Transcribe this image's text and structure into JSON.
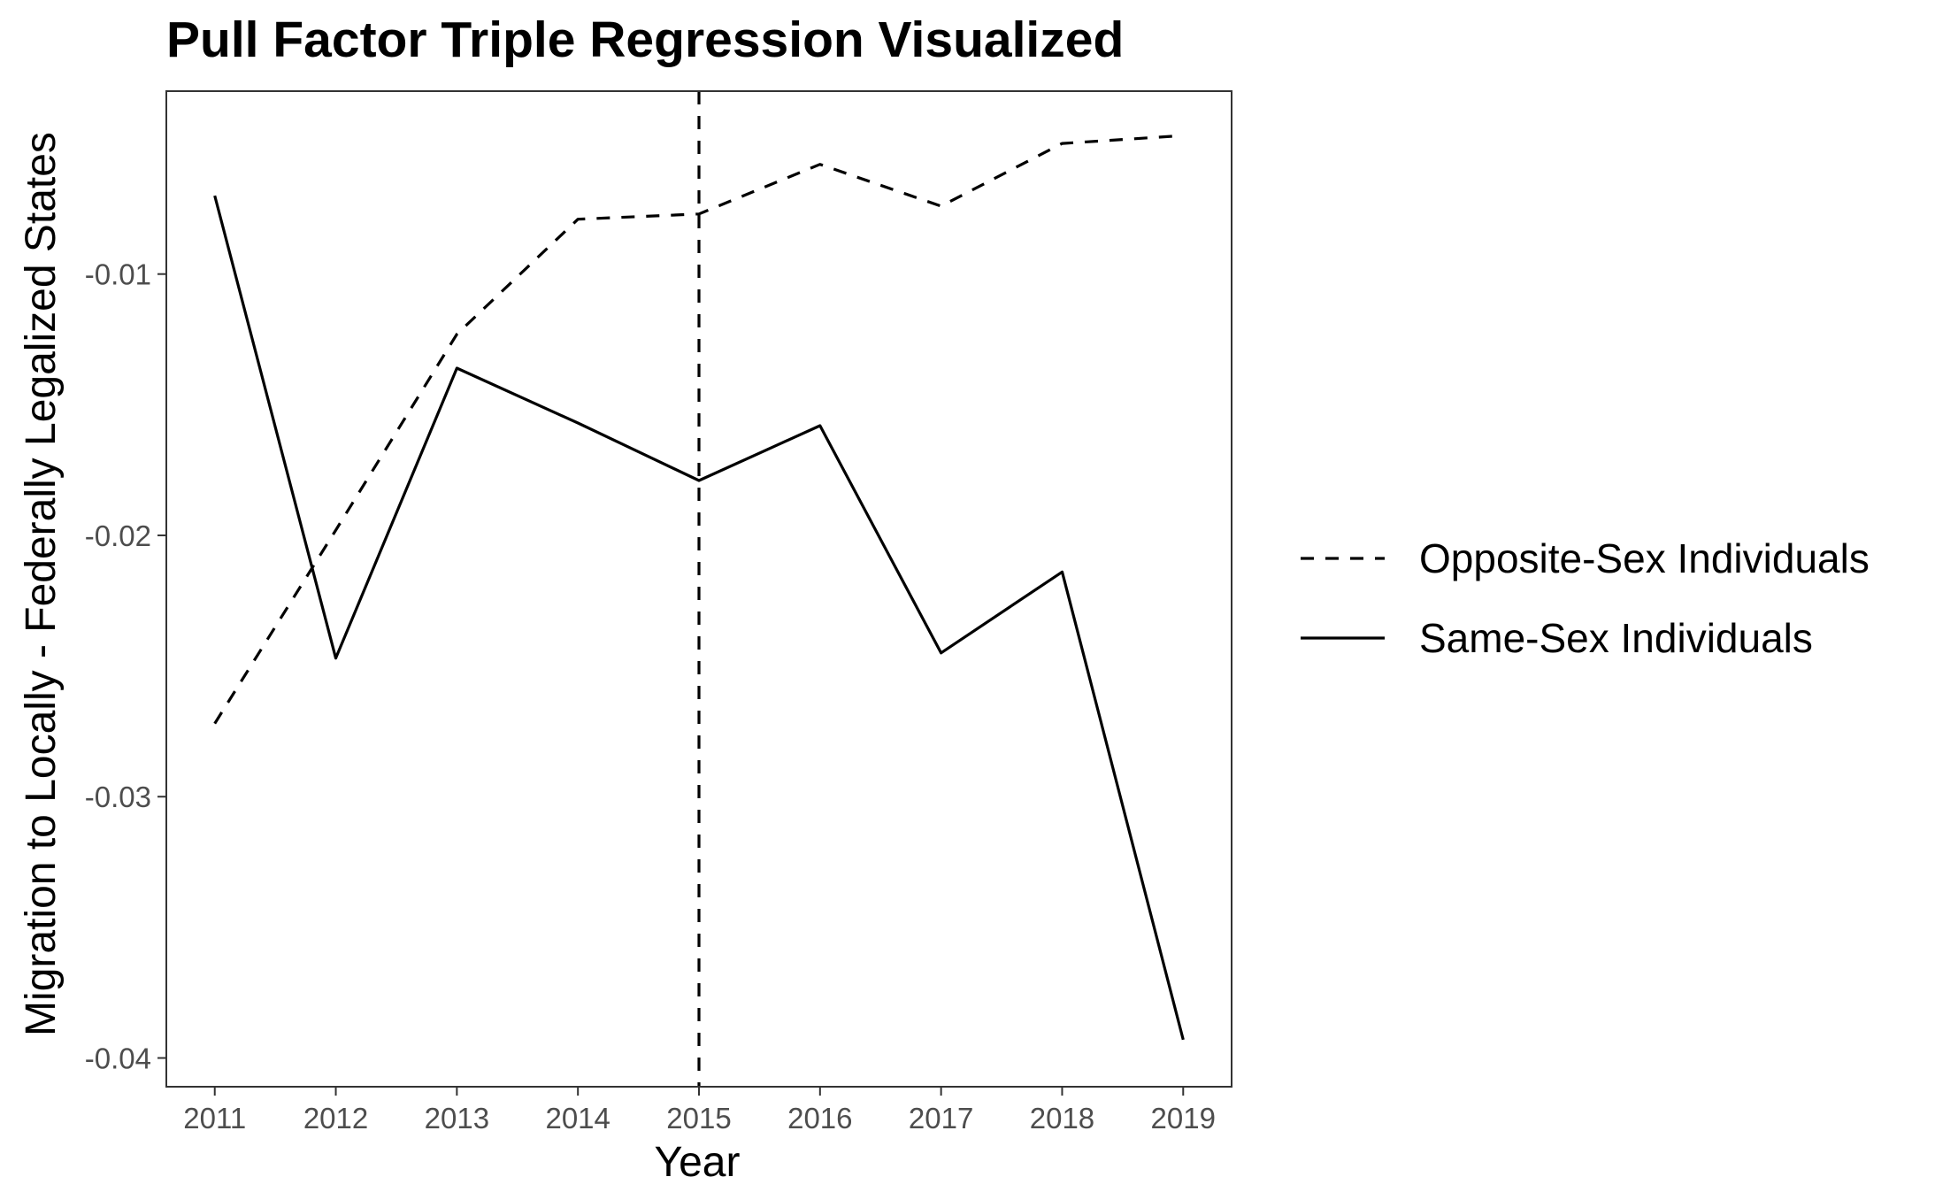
{
  "chart_data": {
    "type": "line",
    "title": "Pull Factor Triple Regression Visualized",
    "xlabel": "Year",
    "ylabel": "Migration to Locally - Federally Legalized States",
    "x": [
      2011,
      2012,
      2013,
      2014,
      2015,
      2016,
      2017,
      2018,
      2019
    ],
    "x_tick_labels": [
      "2011",
      "2012",
      "2013",
      "2014",
      "2015",
      "2016",
      "2017",
      "2018",
      "2019"
    ],
    "xlim": [
      2010.6,
      2019.4
    ],
    "y_ticks": [
      -0.01,
      -0.02,
      -0.03,
      -0.04
    ],
    "y_tick_labels": [
      "-0.01",
      "-0.02",
      "-0.03",
      "-0.04"
    ],
    "ylim": [
      -0.0411,
      -0.003
    ],
    "series": [
      {
        "name": "Opposite-Sex Individuals",
        "line_style": "dashed",
        "color": "#000000",
        "values": [
          -0.0272,
          -0.0198,
          -0.0123,
          -0.0079,
          -0.0077,
          -0.0058,
          -0.0074,
          -0.005,
          -0.0047
        ]
      },
      {
        "name": "Same-Sex Individuals",
        "line_style": "solid",
        "color": "#000000",
        "values": [
          -0.007,
          -0.0247,
          -0.0136,
          -0.0157,
          -0.0179,
          -0.0158,
          -0.0245,
          -0.0214,
          -0.0393
        ]
      }
    ],
    "reference_lines": [
      {
        "axis": "x",
        "value": 2015,
        "line_style": "dashed",
        "color": "#000000"
      }
    ],
    "grid": false,
    "legend_position": "right",
    "theme": "bw"
  }
}
